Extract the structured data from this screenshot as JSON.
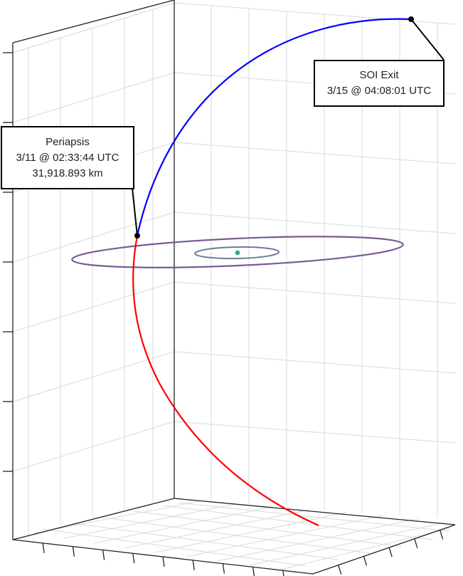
{
  "annotations": {
    "periapsis": {
      "title": "Periapsis",
      "time": "3/11 @ 02:33:44 UTC",
      "distance": "31,918.893 km"
    },
    "soi_exit": {
      "title": "SOI Exit",
      "time": "3/15 @ 04:08:01 UTC"
    }
  },
  "colors": {
    "outbound_trajectory": "#0000ff",
    "inbound_trajectory": "#ff0000",
    "outer_orbit": "#7a5a94",
    "inner_orbit": "#6e7a96",
    "central_body": "#3fa78e",
    "grid": "#d9d9d9",
    "axes": "#222222"
  },
  "view": {
    "projection": "3d-perspective",
    "grid": true
  }
}
